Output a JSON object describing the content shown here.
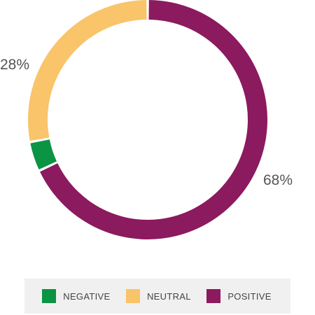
{
  "chart_data": {
    "type": "pie",
    "style": "donut",
    "slices": [
      {
        "name": "POSITIVE",
        "value": 68,
        "label": "68%",
        "color": "#8b1a5e"
      },
      {
        "name": "NEGATIVE",
        "value": 4,
        "label": "",
        "color": "#0b9444"
      },
      {
        "name": "NEUTRAL",
        "value": 28,
        "label": "28%",
        "color": "#f9c46a"
      }
    ],
    "legend_order": [
      "NEGATIVE",
      "NEUTRAL",
      "POSITIVE"
    ],
    "legend_position": "bottom"
  },
  "legend": {
    "items": [
      {
        "label": "NEGATIVE",
        "color": "#0b9444"
      },
      {
        "label": "NEUTRAL",
        "color": "#f9c46a"
      },
      {
        "label": "POSITIVE",
        "color": "#8b1a5e"
      }
    ]
  }
}
